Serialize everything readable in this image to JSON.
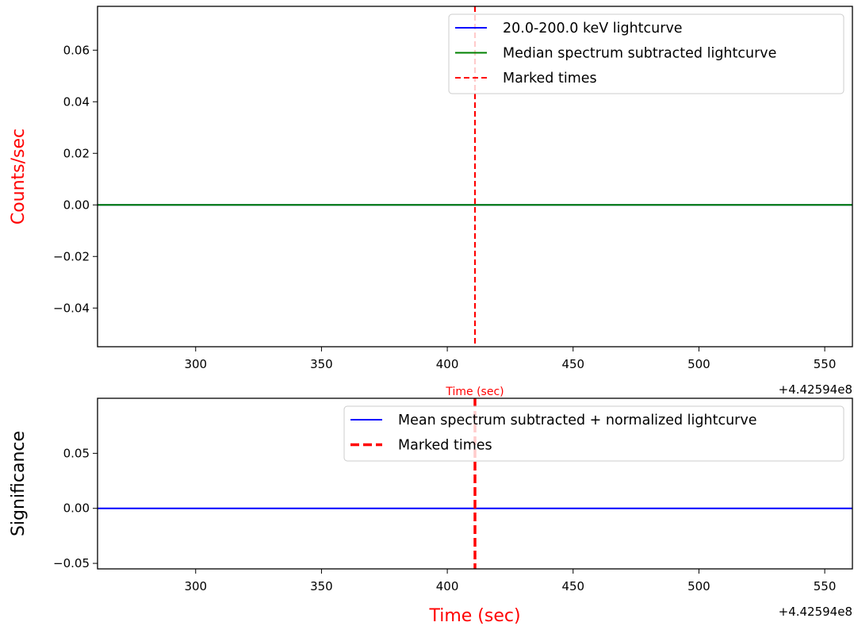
{
  "chart_data": [
    {
      "type": "line",
      "panel": "top",
      "xlabel": "Time (sec)",
      "ylabel": "Counts/sec",
      "xlim": [
        261,
        561
      ],
      "ylim": [
        -0.055,
        0.077
      ],
      "x_ticks": [
        300,
        350,
        400,
        450,
        500,
        550
      ],
      "x_tick_labels": [
        "300",
        "350",
        "400",
        "450",
        "500",
        "550"
      ],
      "y_ticks": [
        -0.04,
        -0.02,
        0.0,
        0.02,
        0.04,
        0.06
      ],
      "y_tick_labels": [
        "−0.04",
        "−0.02",
        "0.00",
        "0.02",
        "0.04",
        "0.06"
      ],
      "x_offset_label": "+4.42594e8",
      "grid": false,
      "legend_position": "top-right",
      "series": [
        {
          "name": "20.0-200.0 keV lightcurve",
          "color": "#0000ff",
          "style": "solid",
          "x": [
            261,
            561
          ],
          "y": [
            0.0,
            0.0
          ]
        },
        {
          "name": "Median spectrum subtracted lightcurve",
          "color": "#008000",
          "style": "solid",
          "x": [
            261,
            561
          ],
          "y": [
            0.0,
            0.0
          ]
        }
      ],
      "vlines": [
        {
          "name": "Marked times",
          "color": "#ff0000",
          "style": "dashed",
          "x": 411
        }
      ],
      "legend": [
        {
          "label": "20.0-200.0 keV lightcurve",
          "color": "#0000ff",
          "style": "solid"
        },
        {
          "label": "Median spectrum subtracted lightcurve",
          "color": "#008000",
          "style": "solid"
        },
        {
          "label": "Marked times",
          "color": "#ff0000",
          "style": "dashed"
        }
      ]
    },
    {
      "type": "line",
      "panel": "bottom",
      "xlabel": "Time (sec)",
      "ylabel": "Significance",
      "xlim": [
        261,
        561
      ],
      "ylim": [
        -0.055,
        0.1
      ],
      "x_ticks": [
        300,
        350,
        400,
        450,
        500,
        550
      ],
      "x_tick_labels": [
        "300",
        "350",
        "400",
        "450",
        "500",
        "550"
      ],
      "y_ticks": [
        -0.05,
        0.0,
        0.05
      ],
      "y_tick_labels": [
        "−0.05",
        "0.00",
        "0.05"
      ],
      "x_offset_label": "+4.42594e8",
      "grid": false,
      "legend_position": "top-right",
      "series": [
        {
          "name": "Mean spectrum subtracted + normalized lightcurve",
          "color": "#0000ff",
          "style": "solid",
          "x": [
            261,
            561
          ],
          "y": [
            0.0,
            0.0
          ]
        }
      ],
      "vlines": [
        {
          "name": "Marked times",
          "color": "#ff0000",
          "style": "dashed",
          "x": 411
        }
      ],
      "legend": [
        {
          "label": "Mean spectrum subtracted + normalized lightcurve",
          "color": "#0000ff",
          "style": "solid"
        },
        {
          "label": "Marked times",
          "color": "#ff0000",
          "style": "dashed"
        }
      ]
    }
  ],
  "colors": {
    "top_xlabel": "#ff0000",
    "top_ylabel": "#ff0000",
    "bottom_xlabel": "#ff0000",
    "bottom_ylabel": "#000000"
  }
}
